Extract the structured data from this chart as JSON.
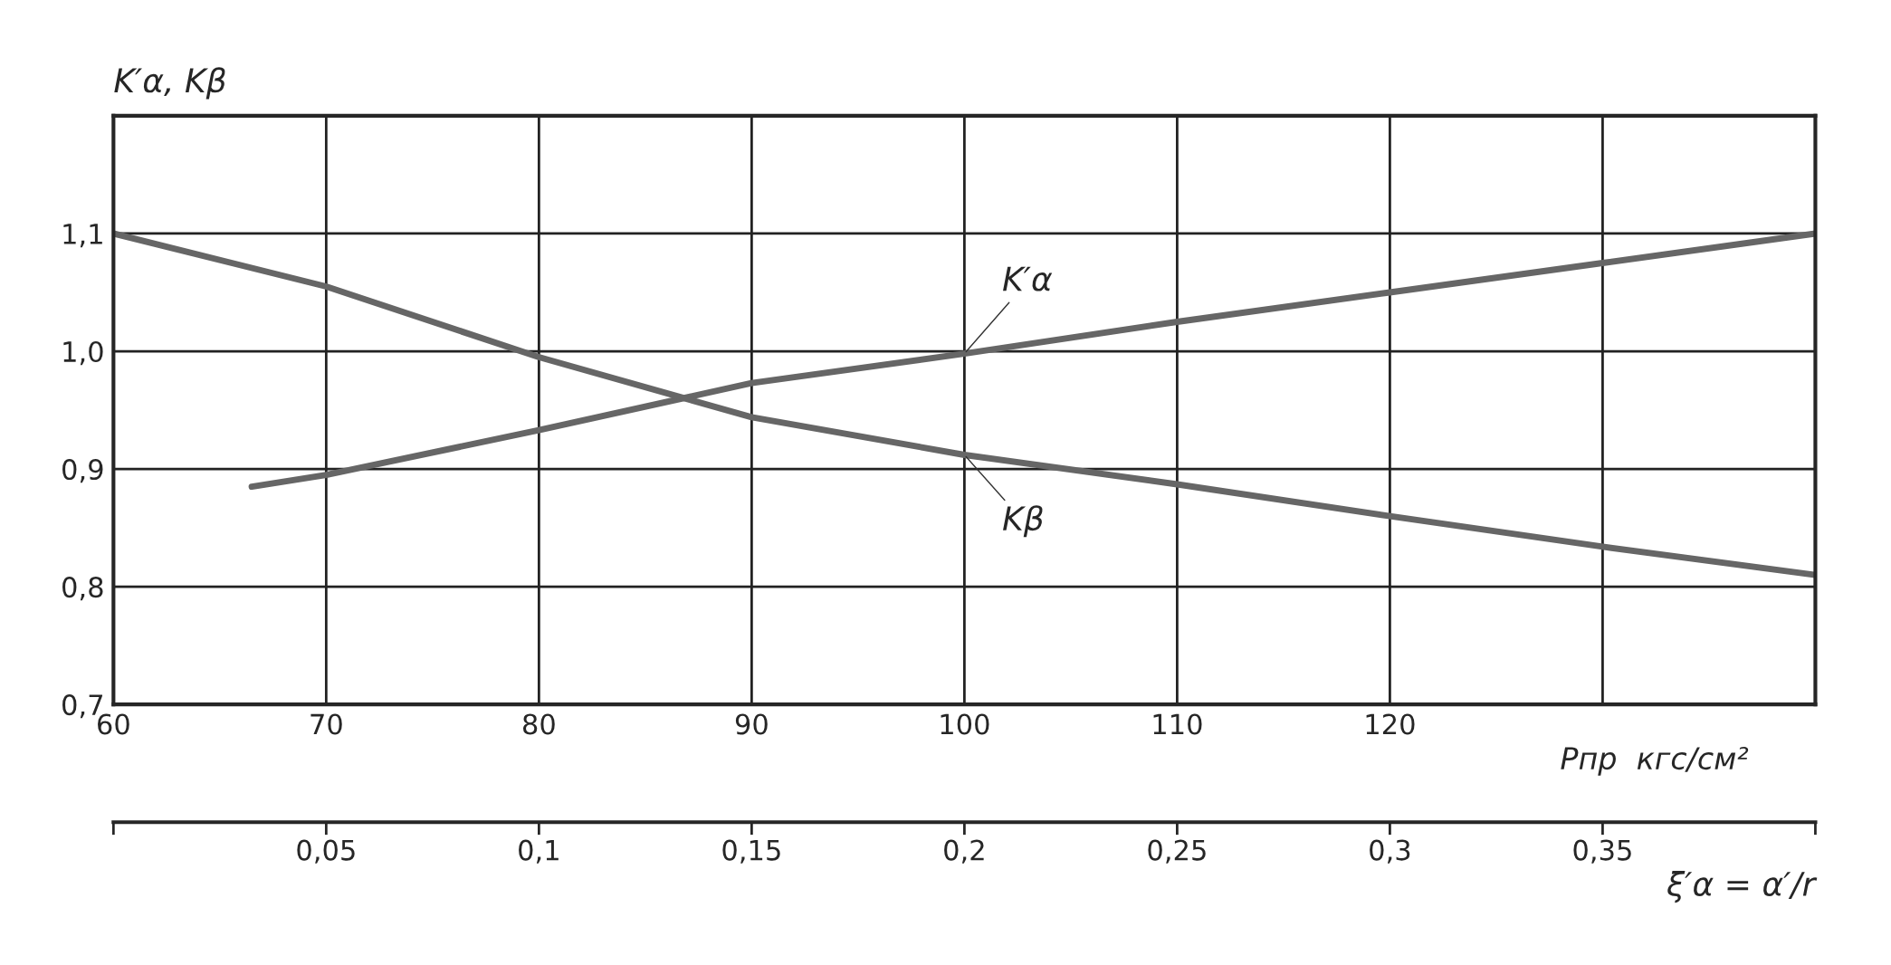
{
  "chart_data": {
    "type": "line",
    "ylabel": "K′α, Kβ",
    "xlabel": "Pпр  кгс/см²",
    "x2label": "ξ′α = α′/r",
    "x": [
      60,
      70,
      80,
      90,
      100,
      110,
      120,
      130,
      140
    ],
    "series": [
      {
        "name": "K′α",
        "color": "#666666",
        "x": [
          66.5,
          70,
          80,
          90,
          100,
          110,
          120,
          130,
          140
        ],
        "values": [
          0.885,
          0.895,
          0.933,
          0.973,
          0.998,
          1.025,
          1.05,
          1.075,
          1.1
        ]
      },
      {
        "name": "Kβ",
        "color": "#666666",
        "values": [
          1.1,
          1.055,
          0.995,
          0.944,
          0.912,
          0.887,
          0.86,
          0.834,
          0.81
        ]
      }
    ],
    "xlim": [
      60,
      140
    ],
    "ylim": [
      0.7,
      1.2
    ],
    "xticks": [
      {
        "value": 60,
        "label": "60"
      },
      {
        "value": 70,
        "label": "70"
      },
      {
        "value": 80,
        "label": "80"
      },
      {
        "value": 90,
        "label": "90"
      },
      {
        "value": 100,
        "label": "100"
      },
      {
        "value": 110,
        "label": "110"
      },
      {
        "value": 120,
        "label": "120"
      },
      {
        "value": 130,
        "label": null
      },
      {
        "value": 140,
        "label": null
      }
    ],
    "yticks": [
      {
        "value": 0.7,
        "label": "0,7"
      },
      {
        "value": 0.8,
        "label": "0,8"
      },
      {
        "value": 0.9,
        "label": "0,9"
      },
      {
        "value": 1.0,
        "label": "1,0"
      },
      {
        "value": 1.1,
        "label": "1,1"
      },
      {
        "value": 1.2,
        "label": null
      }
    ],
    "x2lim": [
      0,
      0.4
    ],
    "x2ticks": [
      {
        "value": 0,
        "label": null
      },
      {
        "value": 0.05,
        "label": "0,05"
      },
      {
        "value": 0.1,
        "label": "0,1"
      },
      {
        "value": 0.15,
        "label": "0,15"
      },
      {
        "value": 0.2,
        "label": "0,2"
      },
      {
        "value": 0.25,
        "label": "0,25"
      },
      {
        "value": 0.3,
        "label": "0,3"
      },
      {
        "value": 0.35,
        "label": "0,35"
      },
      {
        "value": 0.4,
        "label": null
      }
    ],
    "grid": true,
    "legend": false,
    "line_style": "solid",
    "marker": "none"
  }
}
